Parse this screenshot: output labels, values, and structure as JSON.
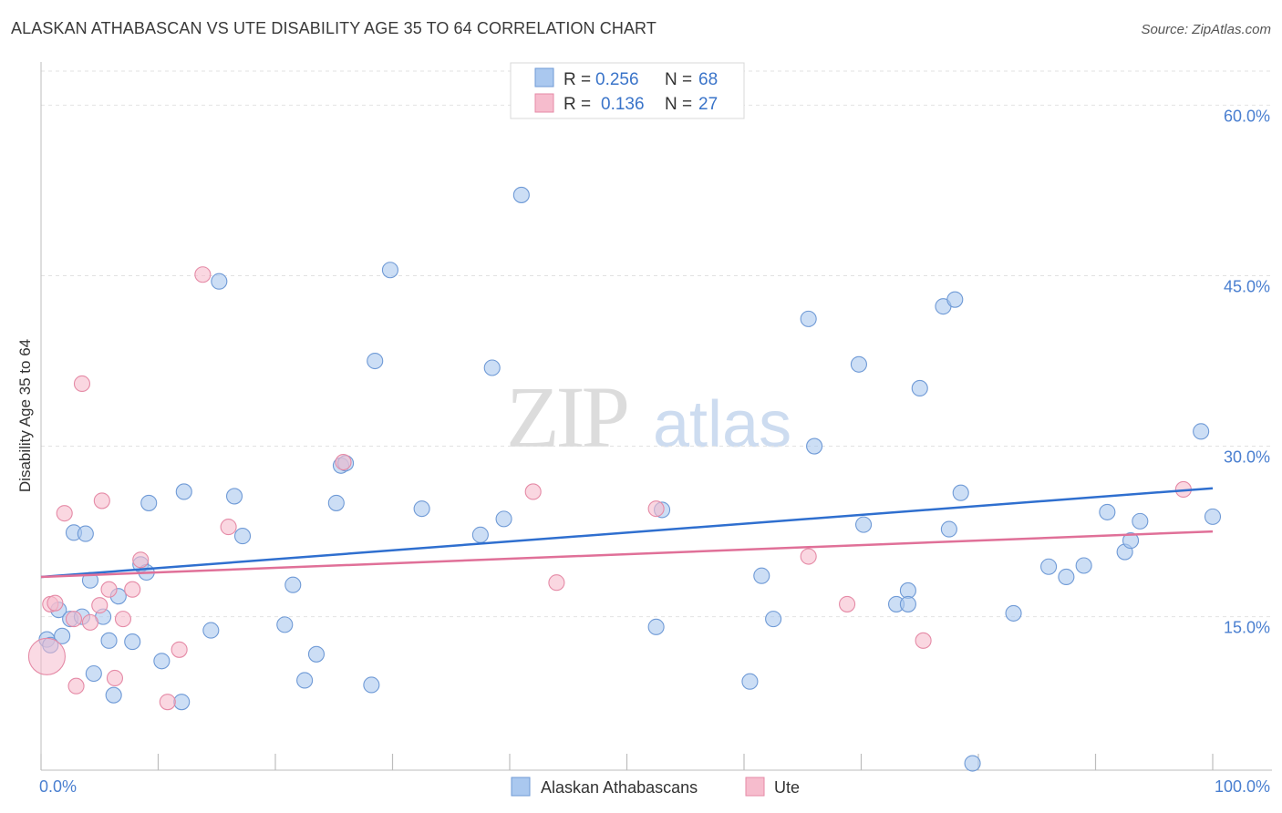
{
  "header": {
    "title": "ALASKAN ATHABASCAN VS UTE DISABILITY AGE 35 TO 64 CORRELATION CHART",
    "source": "Source: ZipAtlas.com"
  },
  "watermark": {
    "zip": "ZIP",
    "atlas": "atlas"
  },
  "colors": {
    "blue_fill": "#aac8ef",
    "blue_stroke": "#6f9ad6",
    "blue_line": "#2f6fcf",
    "pink_fill": "#f6bccd",
    "pink_stroke": "#e58aa6",
    "pink_line": "#e07098",
    "tick_label": "#4a7fd0"
  },
  "legend": {
    "rows": [
      {
        "r_label": "R =",
        "r_value": "0.256",
        "n_label": "N =",
        "n_value": "68"
      },
      {
        "r_label": "R =",
        "r_value": "0.136",
        "n_label": "N =",
        "n_value": "27"
      }
    ]
  },
  "bottom_legend": {
    "items": [
      {
        "label": "Alaskan Athabascans"
      },
      {
        "label": "Ute"
      }
    ]
  },
  "chart_data": {
    "type": "scatter",
    "title": "ALASKAN ATHABASCAN VS UTE DISABILITY AGE 35 TO 64 CORRELATION CHART",
    "xlabel": "",
    "ylabel": "Disability Age 35 to 64",
    "xlim": [
      0,
      100
    ],
    "ylim": [
      1.5,
      63
    ],
    "x_tick_labels": [
      "0.0%",
      "100.0%"
    ],
    "y_ticks": [
      15,
      30,
      45,
      60
    ],
    "y_tick_labels": [
      "15.0%",
      "30.0%",
      "45.0%",
      "60.0%"
    ],
    "grid": "horizontal dashed",
    "legend_position": "top-center",
    "series": [
      {
        "name": "Alaskan Athabascans",
        "color": "#aac8ef",
        "trend": {
          "x": [
            0,
            100
          ],
          "y": [
            18.5,
            26.3
          ]
        },
        "points": [
          [
            0.5,
            13.0
          ],
          [
            1.5,
            15.6
          ],
          [
            1.8,
            13.3
          ],
          [
            2.5,
            14.8
          ],
          [
            2.8,
            22.4
          ],
          [
            3.5,
            15.0
          ],
          [
            3.8,
            22.3
          ],
          [
            4.2,
            18.2
          ],
          [
            4.5,
            10.0
          ],
          [
            5.3,
            15.0
          ],
          [
            5.8,
            12.9
          ],
          [
            6.2,
            8.1
          ],
          [
            6.6,
            16.8
          ],
          [
            7.8,
            12.8
          ],
          [
            8.5,
            19.6
          ],
          [
            9.0,
            18.9
          ],
          [
            9.2,
            25.0
          ],
          [
            10.3,
            11.1
          ],
          [
            12.0,
            7.5
          ],
          [
            12.2,
            26.0
          ],
          [
            14.5,
            13.8
          ],
          [
            15.2,
            44.5
          ],
          [
            16.5,
            25.6
          ],
          [
            17.2,
            22.1
          ],
          [
            20.8,
            14.3
          ],
          [
            21.5,
            17.8
          ],
          [
            22.5,
            9.4
          ],
          [
            23.5,
            11.7
          ],
          [
            25.2,
            25.0
          ],
          [
            25.6,
            28.3
          ],
          [
            26.0,
            28.5
          ],
          [
            28.2,
            9.0
          ],
          [
            28.5,
            37.5
          ],
          [
            29.8,
            45.5
          ],
          [
            32.5,
            24.5
          ],
          [
            37.5,
            22.2
          ],
          [
            38.5,
            36.9
          ],
          [
            39.5,
            23.6
          ],
          [
            41.0,
            52.1
          ],
          [
            52.5,
            14.1
          ],
          [
            53.0,
            24.4
          ],
          [
            60.5,
            9.3
          ],
          [
            61.5,
            18.6
          ],
          [
            62.5,
            14.8
          ],
          [
            65.5,
            41.2
          ],
          [
            66.0,
            30.0
          ],
          [
            69.8,
            37.2
          ],
          [
            70.2,
            23.1
          ],
          [
            73.0,
            16.1
          ],
          [
            74.0,
            17.3
          ],
          [
            74.0,
            16.1
          ],
          [
            75.0,
            35.1
          ],
          [
            77.0,
            42.3
          ],
          [
            77.5,
            22.7
          ],
          [
            78.0,
            42.9
          ],
          [
            78.5,
            25.9
          ],
          [
            79.5,
            2.1
          ],
          [
            83.0,
            15.3
          ],
          [
            86.0,
            19.4
          ],
          [
            87.5,
            18.5
          ],
          [
            89.0,
            19.5
          ],
          [
            91.0,
            24.2
          ],
          [
            92.5,
            20.7
          ],
          [
            93.0,
            21.7
          ],
          [
            93.8,
            23.4
          ],
          [
            99.0,
            31.3
          ],
          [
            100.0,
            23.8
          ],
          [
            0.8,
            12.5
          ]
        ]
      },
      {
        "name": "Ute",
        "color": "#f6bccd",
        "trend": {
          "x": [
            0,
            100
          ],
          "y": [
            18.5,
            22.5
          ]
        },
        "points": [
          [
            0.5,
            11.5
          ],
          [
            0.8,
            16.1
          ],
          [
            1.2,
            16.2
          ],
          [
            2.0,
            24.1
          ],
          [
            2.8,
            14.8
          ],
          [
            3.0,
            8.9
          ],
          [
            3.5,
            35.5
          ],
          [
            4.2,
            14.5
          ],
          [
            5.0,
            16.0
          ],
          [
            5.2,
            25.2
          ],
          [
            5.8,
            17.4
          ],
          [
            6.3,
            9.6
          ],
          [
            7.0,
            14.8
          ],
          [
            7.8,
            17.4
          ],
          [
            8.5,
            20.0
          ],
          [
            10.8,
            7.5
          ],
          [
            11.8,
            12.1
          ],
          [
            13.8,
            45.1
          ],
          [
            16.0,
            22.9
          ],
          [
            25.8,
            28.6
          ],
          [
            42.0,
            26.0
          ],
          [
            44.0,
            18.0
          ],
          [
            52.5,
            24.5
          ],
          [
            65.5,
            20.3
          ],
          [
            68.8,
            16.1
          ],
          [
            75.3,
            12.9
          ],
          [
            97.5,
            26.2
          ]
        ]
      }
    ]
  }
}
